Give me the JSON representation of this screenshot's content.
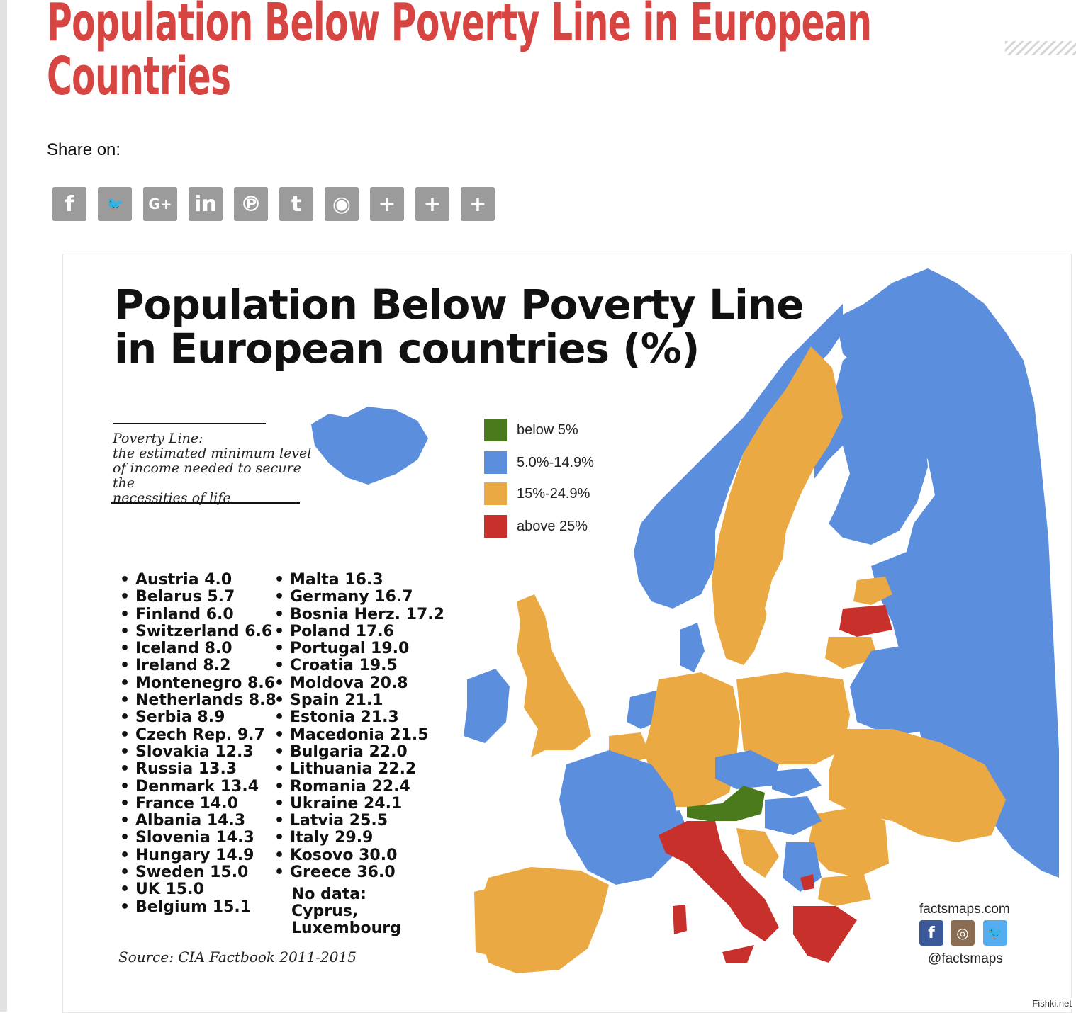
{
  "article": {
    "title_line1": "Population Below Poverty Line in European",
    "title_line2": "Countries",
    "share_label": "Share on:"
  },
  "share_buttons": [
    {
      "label": "f",
      "icon": "facebook-icon"
    },
    {
      "label": "🐦",
      "icon": "twitter-icon"
    },
    {
      "label": "G+",
      "icon": "google-plus-icon"
    },
    {
      "label": "in",
      "icon": "linkedin-icon"
    },
    {
      "label": "℗",
      "icon": "pinterest-icon"
    },
    {
      "label": "t",
      "icon": "tumblr-icon"
    },
    {
      "label": "◉",
      "icon": "reddit-icon"
    },
    {
      "label": "+",
      "icon": "plus-icon"
    },
    {
      "label": "+",
      "icon": "plus-icon"
    },
    {
      "label": "+",
      "icon": "plus-icon"
    }
  ],
  "infographic": {
    "title_line1": "Population Below Poverty Line",
    "title_line2": "in European countries (%)",
    "definition_line1": "Poverty Line:",
    "definition_line2": "the estimated minimum level",
    "definition_line3": "of income needed to secure the",
    "definition_line4": "necessities of life",
    "legend": [
      {
        "label": "below 5%",
        "color": "#4a7a1c"
      },
      {
        "label": "5.0%-14.9%",
        "color": "#5b8fdd"
      },
      {
        "label": "15%-24.9%",
        "color": "#eba943"
      },
      {
        "label": "above 25%",
        "color": "#c8302c"
      }
    ],
    "list_left": [
      "Austria 4.0",
      "Belarus 5.7",
      "Finland 6.0",
      "Switzerland 6.6",
      "Iceland 8.0",
      "Ireland 8.2",
      "Montenegro 8.6",
      "Netherlands 8.8",
      "Serbia 8.9",
      "Czech Rep. 9.7",
      "Slovakia 12.3",
      "Russia 13.3",
      "Denmark 13.4",
      "France 14.0",
      "Albania 14.3",
      "Slovenia 14.3",
      "Hungary 14.9",
      "Sweden 15.0",
      "UK 15.0",
      "Belgium 15.1"
    ],
    "list_right": [
      "Malta 16.3",
      "Germany 16.7",
      "Bosnia Herz. 17.2",
      "Poland 17.6",
      "Portugal 19.0",
      "Croatia 19.5",
      "Moldova 20.8",
      "Spain 21.1",
      "Estonia 21.3",
      "Macedonia 21.5",
      "Bulgaria 22.0",
      "Lithuania 22.2",
      "Romania 22.4",
      "Ukraine 24.1",
      "Latvia 25.5",
      "Italy 29.9",
      "Kosovo 30.0",
      "Greece 36.0"
    ],
    "no_data_line1": "No data:",
    "no_data_line2": "Cyprus,",
    "no_data_line3": "Luxembourg",
    "source": "Source: CIA Factbook 2011-2015",
    "credit_site": "factsmaps.com",
    "credit_handle": "@factsmaps",
    "social_icons": [
      {
        "label": "f",
        "icon": "facebook-icon",
        "color": "#3b5998"
      },
      {
        "label": "◎",
        "icon": "instagram-icon",
        "color": "#8a6d52"
      },
      {
        "label": "🐦",
        "icon": "twitter-icon",
        "color": "#55acee"
      }
    ]
  },
  "watermark": "Fishki.net"
}
